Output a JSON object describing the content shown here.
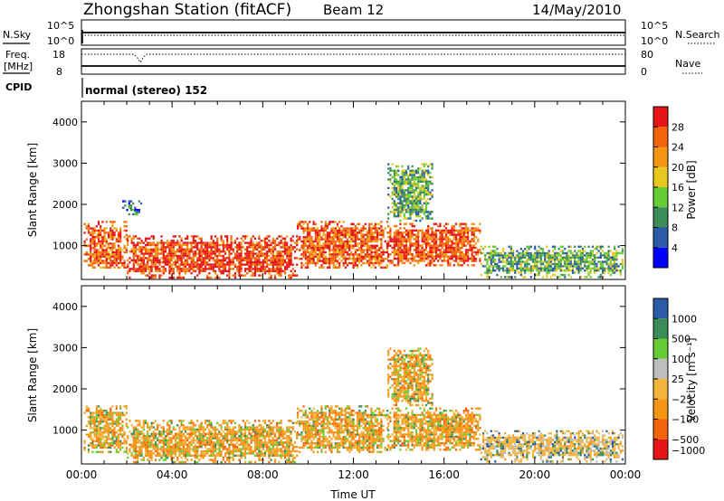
{
  "header": {
    "station_title": "Zhongshan Station (fitACF)",
    "beam": "Beam 12",
    "date": "14/May/2010"
  },
  "status_panels": {
    "nsky_label": "N.Sky",
    "nsky_ticks": [
      "10^5",
      "10^0"
    ],
    "nsearch_label": "N.Search",
    "nsearch_ticks": [
      "10^5",
      "10^0"
    ],
    "freq_label_line1": "Freq.",
    "freq_label_line2": "[MHz]",
    "freq_ticks": [
      "18",
      "8"
    ],
    "nave_label": "Nave",
    "nave_ticks": [
      "80",
      "0"
    ],
    "cpid_label": "CPID",
    "mode_text": "normal (stereo) 152"
  },
  "colors": {
    "power_scale": [
      "#0000ff",
      "#2a5aa8",
      "#3c8c5a",
      "#66cc33",
      "#e8c81e",
      "#f59514",
      "#f2640a",
      "#e61414"
    ],
    "velocity_scale": [
      "#e61414",
      "#f2640a",
      "#f59514",
      "#f5b43c",
      "#bebebe",
      "#66cc33",
      "#3c8c5a",
      "#2a5aa8"
    ]
  },
  "chart_data": [
    {
      "type": "heatmap",
      "title": "",
      "xlabel": "",
      "ylabel": "Slant Range [km]",
      "x_tick_labels": [
        "00:00",
        "04:00",
        "08:00",
        "12:00",
        "16:00",
        "20:00",
        "00:00"
      ],
      "x_ticks_hours": [
        0,
        4,
        8,
        12,
        16,
        20,
        24
      ],
      "ylim": [
        180,
        4500
      ],
      "y_ticks": [
        1000,
        2000,
        3000,
        4000
      ],
      "colorbar": {
        "label": "Power [dB]",
        "tick_labels": [
          "28",
          "24",
          "20",
          "16",
          "12",
          "8",
          "4"
        ],
        "tick_values": [
          28,
          24,
          20,
          16,
          12,
          8,
          4
        ],
        "range": [
          0,
          32
        ]
      },
      "regions": [
        {
          "t0": 0.1,
          "t1": 2.0,
          "r0": 450,
          "r1": 1600,
          "dominant": 26
        },
        {
          "t0": 2.0,
          "t1": 9.5,
          "r0": 250,
          "r1": 1250,
          "dominant": 28
        },
        {
          "t0": 9.5,
          "t1": 13.5,
          "r0": 450,
          "r1": 1600,
          "dominant": 26
        },
        {
          "t0": 13.5,
          "t1": 17.6,
          "r0": 500,
          "r1": 1550,
          "dominant": 27
        },
        {
          "t0": 13.5,
          "t1": 15.5,
          "r0": 1600,
          "r1": 3000,
          "dominant": 12
        },
        {
          "t0": 1.8,
          "t1": 2.6,
          "r0": 1750,
          "r1": 2100,
          "dominant": 8
        },
        {
          "t0": 17.6,
          "t1": 23.9,
          "r0": 250,
          "r1": 1000,
          "dominant": 12
        }
      ]
    },
    {
      "type": "heatmap",
      "title": "",
      "xlabel": "Time UT",
      "ylabel": "Slant Range [km]",
      "x_tick_labels": [
        "00:00",
        "04:00",
        "08:00",
        "12:00",
        "16:00",
        "20:00",
        "00:00"
      ],
      "x_ticks_hours": [
        0,
        4,
        8,
        12,
        16,
        20,
        24
      ],
      "ylim": [
        180,
        4500
      ],
      "y_ticks": [
        1000,
        2000,
        3000,
        4000
      ],
      "colorbar": {
        "label": "Velocity [m s⁻¹]",
        "tick_labels": [
          "1000",
          "500",
          "100",
          "25",
          "−25",
          "−100",
          "−500",
          "−1000"
        ],
        "tick_values": [
          1000,
          500,
          100,
          25,
          -25,
          -100,
          -500,
          -1000
        ]
      },
      "regions": [
        {
          "t0": 0.1,
          "t1": 2.0,
          "r0": 450,
          "r1": 1600,
          "dominant": -100
        },
        {
          "t0": 2.0,
          "t1": 9.5,
          "r0": 250,
          "r1": 1250,
          "dominant": -100
        },
        {
          "t0": 9.5,
          "t1": 13.5,
          "r0": 450,
          "r1": 1600,
          "dominant": -100
        },
        {
          "t0": 13.5,
          "t1": 17.6,
          "r0": 500,
          "r1": 1550,
          "dominant": -100
        },
        {
          "t0": 13.5,
          "t1": 15.5,
          "r0": 1600,
          "r1": 3000,
          "dominant": -100
        },
        {
          "t0": 17.6,
          "t1": 23.9,
          "r0": 250,
          "r1": 1000,
          "dominant": -25
        }
      ]
    }
  ]
}
